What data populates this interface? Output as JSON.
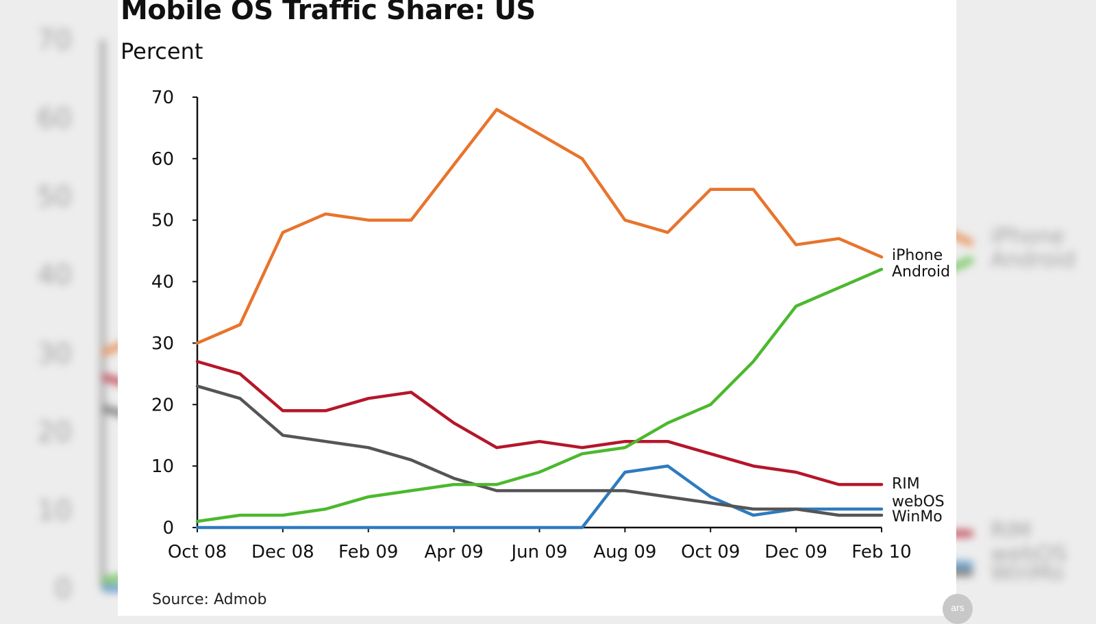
{
  "title": "Mobile OS Traffic Share: US",
  "subtitle": "Percent",
  "source": "Source: Admob",
  "badge": "ars",
  "chart_data": {
    "type": "line",
    "title": "Mobile OS Traffic Share: US",
    "ylabel": "Percent",
    "xlabel": "",
    "ylim": [
      0,
      70
    ],
    "yticks": [
      0,
      10,
      20,
      30,
      40,
      50,
      60,
      70
    ],
    "x": [
      "Oct 08",
      "Nov 08",
      "Dec 08",
      "Jan 09",
      "Feb 09",
      "Mar 09",
      "Apr 09",
      "May 09",
      "Jun 09",
      "Jul 09",
      "Aug 09",
      "Sep 09",
      "Oct 09",
      "Nov 09",
      "Dec 09",
      "Jan 10",
      "Feb 10"
    ],
    "xtick_labels": [
      "Oct 08",
      "Dec 08",
      "Feb 09",
      "Apr 09",
      "Jun 09",
      "Aug 09",
      "Oct 09",
      "Dec 09",
      "Feb 10"
    ],
    "grid": false,
    "legend": "right end labels",
    "series": [
      {
        "name": "iPhone",
        "color": "#e8742c",
        "values": [
          30,
          33,
          48,
          51,
          50,
          50,
          59,
          68,
          64,
          60,
          50,
          48,
          55,
          55,
          46,
          47,
          44
        ]
      },
      {
        "name": "Android",
        "color": "#4cb82e",
        "values": [
          1,
          2,
          2,
          3,
          5,
          6,
          7,
          7,
          9,
          12,
          13,
          17,
          20,
          27,
          36,
          39,
          42
        ]
      },
      {
        "name": "RIM",
        "color": "#b5162a",
        "values": [
          27,
          25,
          19,
          19,
          21,
          22,
          17,
          13,
          14,
          13,
          14,
          14,
          12,
          10,
          9,
          7,
          7
        ]
      },
      {
        "name": "webOS",
        "color": "#2e7bbf",
        "values": [
          0,
          0,
          0,
          0,
          0,
          0,
          0,
          0,
          0,
          0,
          9,
          10,
          5,
          2,
          3,
          3,
          3
        ]
      },
      {
        "name": "WinMo",
        "color": "#555555",
        "values": [
          23,
          21,
          15,
          14,
          13,
          11,
          8,
          6,
          6,
          6,
          6,
          5,
          4,
          3,
          3,
          2,
          2
        ]
      }
    ]
  }
}
